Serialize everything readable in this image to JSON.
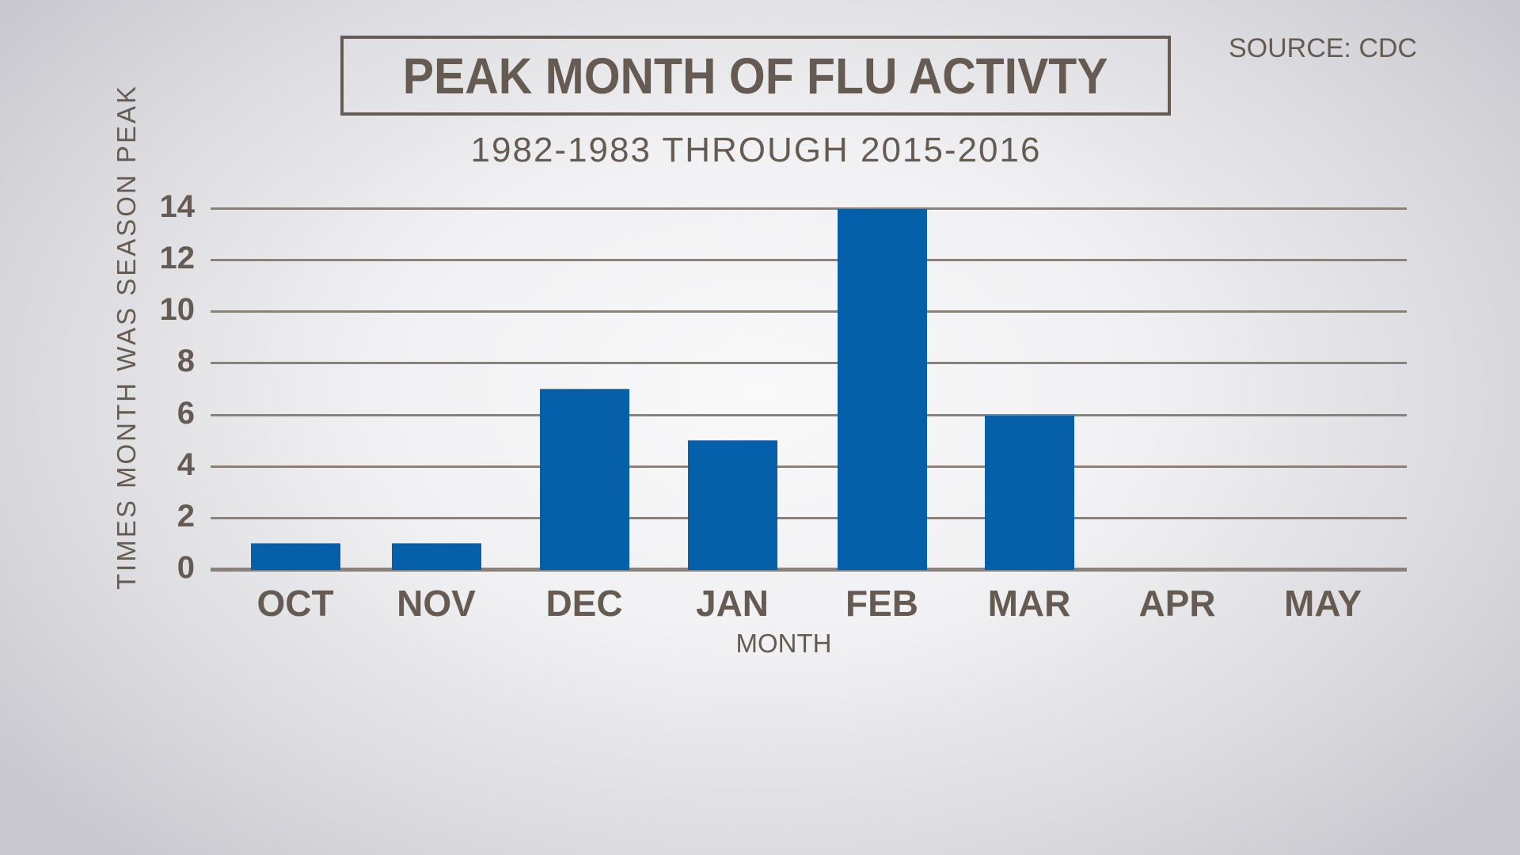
{
  "header": {
    "title": "PEAK MONTH OF FLU ACTIVTY",
    "subtitle": "1982-1983 THROUGH 2015-2016",
    "source": "SOURCE: CDC"
  },
  "colors": {
    "bar": "#055fa9",
    "text": "#655b53",
    "grid": "#8a817b"
  },
  "chart_data": {
    "type": "bar",
    "title": "PEAK MONTH OF FLU ACTIVTY",
    "subtitle": "1982-1983 THROUGH 2015-2016",
    "source": "SOURCE: CDC",
    "xlabel": "MONTH",
    "ylabel": "TIMES MONTH WAS SEASON PEAK",
    "categories": [
      "OCT",
      "NOV",
      "DEC",
      "JAN",
      "FEB",
      "MAR",
      "APR",
      "MAY"
    ],
    "values": [
      1,
      1,
      7,
      5,
      14,
      6,
      0,
      0
    ],
    "ylim": [
      0,
      14
    ],
    "yticks": [
      "0",
      "2",
      "4",
      "6",
      "8",
      "10",
      "12",
      "14"
    ],
    "grid": true,
    "legend": null
  }
}
